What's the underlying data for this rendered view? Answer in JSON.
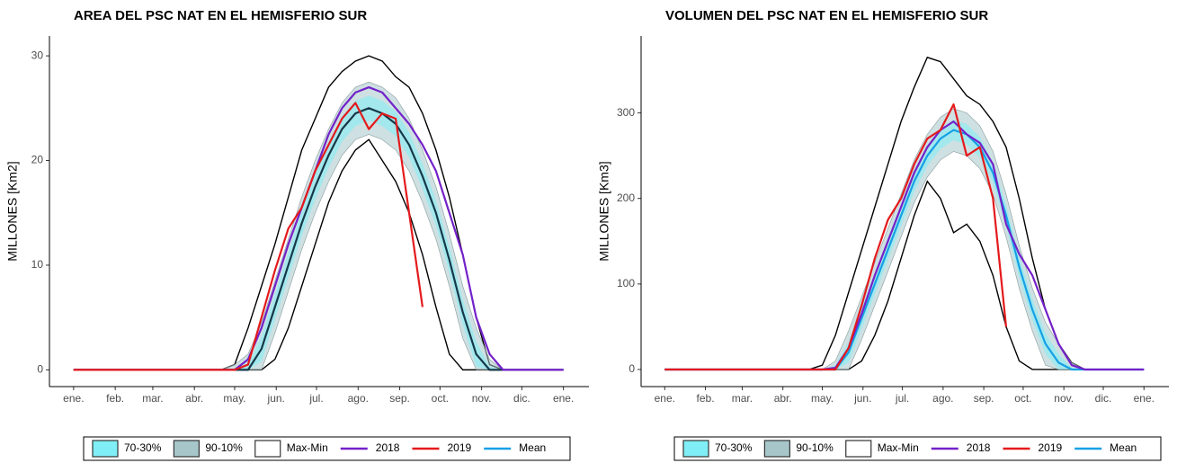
{
  "chart_data": [
    {
      "type": "line",
      "title": "AREA DEL PSC NAT EN EL HEMISFERIO SUR",
      "ylabel": "MILLONES [Km2]",
      "x": [
        0,
        110,
        120,
        130,
        140,
        150,
        160,
        170,
        180,
        190,
        200,
        210,
        220,
        230,
        240,
        250,
        260,
        270,
        280,
        290,
        300,
        310,
        320,
        365
      ],
      "xlim": [
        -18,
        384
      ],
      "xticks": [
        {
          "value": 0,
          "label": "ene."
        },
        {
          "value": 31,
          "label": "feb."
        },
        {
          "value": 59,
          "label": "mar."
        },
        {
          "value": 90,
          "label": "abr."
        },
        {
          "value": 120,
          "label": "may."
        },
        {
          "value": 151,
          "label": "jun."
        },
        {
          "value": 181,
          "label": "jul."
        },
        {
          "value": 212,
          "label": "ago."
        },
        {
          "value": 243,
          "label": "sep."
        },
        {
          "value": 273,
          "label": "oct."
        },
        {
          "value": 304,
          "label": "nov."
        },
        {
          "value": 334,
          "label": "dic."
        },
        {
          "value": 365,
          "label": "ene."
        }
      ],
      "ylim": [
        -1.6,
        31.9
      ],
      "yticks": [
        0,
        10,
        20,
        30
      ],
      "series": [
        {
          "name": "70-30%",
          "color": "#80eef6",
          "lower": [
            0,
            0,
            0,
            0,
            0.8,
            4.8,
            8.8,
            12.8,
            16.3,
            19.3,
            21.8,
            23.3,
            23.8,
            23.3,
            22.3,
            20.3,
            17.3,
            13.8,
            9.3,
            4.3,
            0.3,
            0,
            0,
            0
          ],
          "upper": [
            0,
            0,
            0,
            0.5,
            3.2,
            7.2,
            11.2,
            15.2,
            18.7,
            21.7,
            24.2,
            25.7,
            26.2,
            25.7,
            24.7,
            22.7,
            19.7,
            16.2,
            11.7,
            6.7,
            2.7,
            0.3,
            0,
            0
          ]
        },
        {
          "name": "90-10%",
          "color": "#a6c6ca",
          "lower": [
            0,
            0,
            0,
            0,
            0,
            3.5,
            7.5,
            11.5,
            15,
            18,
            20.5,
            22,
            22.5,
            22,
            21,
            19,
            16,
            12.5,
            8,
            3,
            0,
            0,
            0,
            0
          ],
          "upper": [
            0,
            0,
            0.5,
            1.5,
            4.5,
            8.5,
            12.5,
            16.5,
            20,
            23,
            25.5,
            27,
            27.5,
            27,
            26,
            24,
            21,
            17.5,
            13,
            8,
            4,
            1,
            0,
            0
          ]
        },
        {
          "name": "Max-Min",
          "color": "#ffffff",
          "lower": [
            0,
            0,
            0,
            0,
            0,
            1,
            4,
            8,
            12,
            16,
            19,
            21,
            22,
            20,
            18,
            15,
            11,
            6,
            1.5,
            0,
            0,
            0,
            0,
            0
          ],
          "upper": [
            0,
            0,
            0.5,
            4,
            8,
            12,
            16.5,
            21,
            24,
            27,
            28.5,
            29.5,
            30,
            29.5,
            28,
            27,
            24.5,
            21,
            16.5,
            11,
            5,
            0.5,
            0,
            0
          ]
        },
        {
          "name": "2018",
          "color": "#7321c9",
          "values": [
            0,
            0,
            0,
            1,
            4,
            8,
            12,
            15.5,
            19,
            22.5,
            25,
            26.5,
            27,
            26.5,
            25,
            23.5,
            21.5,
            19,
            15,
            11,
            5,
            1.5,
            0,
            0
          ]
        },
        {
          "name": "2019",
          "color": "#e41a1c",
          "values": [
            0,
            0,
            0,
            0.5,
            5,
            9.5,
            13.5,
            15.5,
            19,
            21.5,
            24,
            25.5,
            23,
            24.5,
            24,
            15,
            6,
            null,
            null,
            null,
            null,
            null,
            null,
            null
          ]
        },
        {
          "name": "Mean",
          "color": "#16a0e6",
          "line_color": "#163848",
          "values": [
            0,
            0,
            0,
            0,
            2,
            6,
            10,
            14,
            17.5,
            20.5,
            23,
            24.5,
            25,
            24.5,
            23.5,
            21.5,
            18.5,
            15,
            10.5,
            5.5,
            1.5,
            0,
            0,
            0
          ]
        }
      ]
    },
    {
      "type": "line",
      "title": "VOLUMEN DEL PSC NAT EN EL HEMISFERIO SUR",
      "ylabel": "MILLONES [Km3]",
      "x": [
        0,
        110,
        120,
        130,
        140,
        150,
        160,
        170,
        180,
        190,
        200,
        210,
        220,
        230,
        240,
        250,
        260,
        270,
        280,
        290,
        300,
        310,
        320,
        365
      ],
      "xlim": [
        -18,
        384
      ],
      "xticks": [
        {
          "value": 0,
          "label": "ene."
        },
        {
          "value": 31,
          "label": "feb."
        },
        {
          "value": 59,
          "label": "mar."
        },
        {
          "value": 90,
          "label": "abr."
        },
        {
          "value": 120,
          "label": "may."
        },
        {
          "value": 151,
          "label": "jun."
        },
        {
          "value": 181,
          "label": "jul."
        },
        {
          "value": 212,
          "label": "ago."
        },
        {
          "value": 243,
          "label": "sep."
        },
        {
          "value": 273,
          "label": "oct."
        },
        {
          "value": 304,
          "label": "nov."
        },
        {
          "value": 334,
          "label": "dic."
        },
        {
          "value": 365,
          "label": "ene."
        }
      ],
      "ylim": [
        -20,
        390
      ],
      "yticks": [
        0,
        100,
        200,
        300
      ],
      "series": [
        {
          "name": "70-30%",
          "color": "#80eef6",
          "lower": [
            0,
            0,
            0,
            0,
            8,
            48,
            88,
            128,
            168,
            208,
            238,
            258,
            268,
            263,
            248,
            218,
            168,
            108,
            58,
            18,
            0,
            0,
            0,
            0
          ],
          "upper": [
            0,
            0,
            0,
            5,
            32,
            72,
            112,
            152,
            192,
            232,
            262,
            282,
            292,
            287,
            272,
            242,
            192,
            132,
            82,
            42,
            18,
            2,
            0,
            0
          ]
        },
        {
          "name": "90-10%",
          "color": "#a6c6ca",
          "lower": [
            0,
            0,
            0,
            0,
            0,
            35,
            75,
            115,
            155,
            195,
            225,
            245,
            255,
            250,
            235,
            205,
            155,
            95,
            45,
            5,
            0,
            0,
            0,
            0
          ],
          "upper": [
            0,
            0,
            0,
            10,
            45,
            85,
            125,
            165,
            205,
            245,
            275,
            295,
            305,
            300,
            285,
            255,
            205,
            145,
            95,
            55,
            30,
            8,
            0,
            0
          ]
        },
        {
          "name": "Max-Min",
          "color": "#ffffff",
          "lower": [
            0,
            0,
            0,
            0,
            0,
            10,
            40,
            80,
            130,
            180,
            220,
            200,
            160,
            170,
            150,
            110,
            50,
            10,
            0,
            0,
            0,
            0,
            0,
            0
          ],
          "upper": [
            0,
            0,
            5,
            40,
            90,
            140,
            190,
            240,
            290,
            330,
            365,
            360,
            340,
            320,
            310,
            290,
            260,
            200,
            130,
            70,
            30,
            8,
            0,
            0
          ]
        },
        {
          "name": "2018",
          "color": "#7321c9",
          "values": [
            0,
            0,
            0,
            2,
            25,
            65,
            110,
            150,
            190,
            230,
            260,
            280,
            290,
            275,
            265,
            240,
            170,
            135,
            110,
            70,
            30,
            5,
            0,
            0
          ]
        },
        {
          "name": "2019",
          "color": "#e41a1c",
          "values": [
            0,
            0,
            0,
            0,
            25,
            75,
            130,
            175,
            200,
            240,
            270,
            280,
            310,
            250,
            260,
            200,
            50,
            null,
            null,
            null,
            null,
            null,
            null,
            null
          ]
        },
        {
          "name": "Mean",
          "color": "#16a0e6",
          "values": [
            0,
            0,
            0,
            0,
            20,
            60,
            100,
            140,
            180,
            220,
            250,
            270,
            280,
            275,
            260,
            230,
            180,
            120,
            70,
            30,
            8,
            0,
            0,
            0
          ]
        }
      ]
    }
  ]
}
